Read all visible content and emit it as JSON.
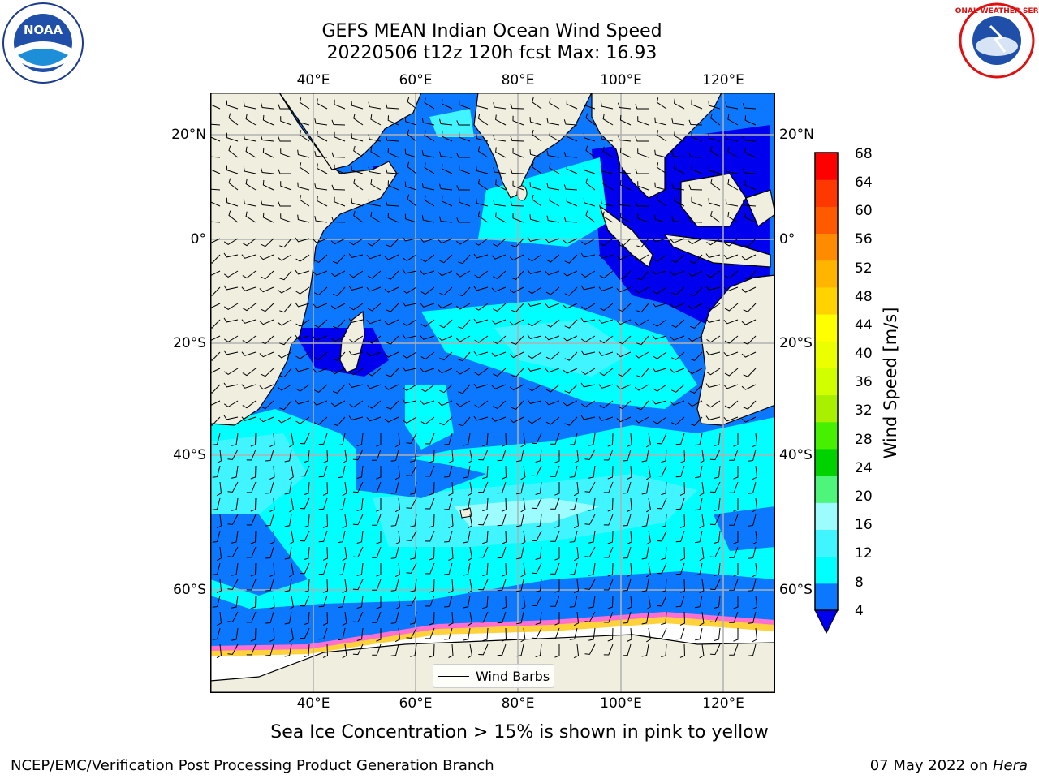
{
  "header": {
    "title_line1": "GEFS MEAN Indian Ocean Wind Speed",
    "title_line2": "20220506 t12z 120h fcst   Max: 16.93"
  },
  "logos": {
    "noaa": {
      "text": "NOAA",
      "ring_text": "NATIONAL OCEANIC AND ATMOSPHERIC ADMINISTRATION · U.S. DEPARTMENT OF COMMERCE"
    },
    "nws": {
      "ring_text": "NATIONAL WEATHER SERVICE"
    }
  },
  "map": {
    "lon_ticks": [
      "40°E",
      "60°E",
      "80°E",
      "100°E",
      "120°E"
    ],
    "lat_ticks_left": [
      "20°N",
      "0°",
      "20°S",
      "40°S",
      "60°S"
    ],
    "lat_ticks_right": [
      "20°N",
      "0°",
      "20°S",
      "40°S",
      "60°S"
    ],
    "lon_range": [
      20,
      130
    ],
    "lat_range": [
      -74,
      28
    ],
    "legend_label": "Wind Barbs",
    "colors": {
      "land": "#efeedf",
      "ice": "#ffffff",
      "ws_4_8": "#0c78ff",
      "ws_below_4": "#0000ee",
      "ws_8_12": "#00ffff",
      "ws_12_16": "#40f5ff",
      "ws_16_20": "#9dfcfd"
    }
  },
  "colorbar": {
    "title": "Wind Speed [m/s]",
    "labels": [
      "68",
      "64",
      "60",
      "56",
      "52",
      "48",
      "44",
      "40",
      "36",
      "32",
      "28",
      "24",
      "20",
      "16",
      "12",
      "8",
      "4"
    ],
    "colors": [
      "#0c78ff",
      "#00ffff",
      "#40f5ff",
      "#9dfcfd",
      "#4ef57a",
      "#00d200",
      "#47ef00",
      "#a8f000",
      "#d2ff00",
      "#ecff00",
      "#ffff00",
      "#ffd200",
      "#ffb400",
      "#ff8c00",
      "#ff5a00",
      "#ff3700",
      "#ff0000"
    ],
    "under_color": "#0000ee"
  },
  "caption": "Sea Ice Concentration > 15% is shown in pink to yellow",
  "footer": {
    "left": "NCEP/EMC/Verification Post Processing Product Generation Branch",
    "date": "07 May 2022 on ",
    "machine": "Hera"
  }
}
